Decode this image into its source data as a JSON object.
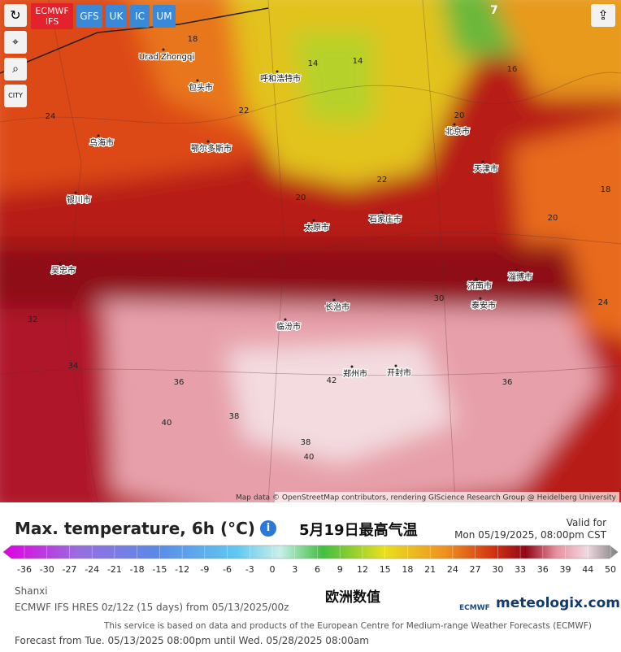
{
  "map": {
    "model_buttons": [
      "ECMWF",
      "IFS",
      "GFS",
      "UK",
      "IC",
      "UM"
    ],
    "city_button": "CITY",
    "wind_marker": "7",
    "city_labels": [
      "Urad Zhongqi",
      "包头市",
      "呼和浩特市",
      "乌海市",
      "银川市",
      "鄂尔多斯市",
      "北京市",
      "天津市",
      "石家庄市",
      "太原市",
      "济南市",
      "淄博市",
      "长治市",
      "郑州市",
      "开封市",
      "泰安市",
      "吴忠市",
      "临汾市"
    ],
    "temperature_labels": [
      18,
      24,
      22,
      14,
      14,
      16,
      20,
      18,
      20,
      22,
      20,
      24,
      30,
      32,
      34,
      36,
      38,
      40,
      42,
      40,
      38,
      36
    ],
    "attribution": "Map data © OpenStreetMap contributors, rendering GIScience Research Group @ Heidelberg University"
  },
  "legend": {
    "title": "Max. temperature, 6h (°C)",
    "caption": "5月19日最高气温",
    "valid_label": "Valid for",
    "valid_time": "Mon 05/19/2025, 08:00pm CST",
    "ticks": [
      -36,
      -30,
      -27,
      -24,
      -21,
      -18,
      -15,
      -12,
      -9,
      -6,
      -3,
      0,
      3,
      6,
      9,
      12,
      15,
      18,
      21,
      24,
      27,
      30,
      33,
      36,
      39,
      44,
      50
    ]
  },
  "footer": {
    "region": "Shanxi",
    "note": "欧洲数值",
    "model_info": "ECMWF IFS HRES 0z/12z (15 days) from 05/13/2025/00z",
    "ecmwf_logo": "ECMWF",
    "brand": "meteologix.com",
    "service": "This service is based on data and products of the European Centre for Medium-range Weather Forecasts (ECMWF)",
    "forecast_range": "Forecast from Tue. 05/13/2025 08:00pm until Wed. 05/28/2025 08:00am"
  }
}
